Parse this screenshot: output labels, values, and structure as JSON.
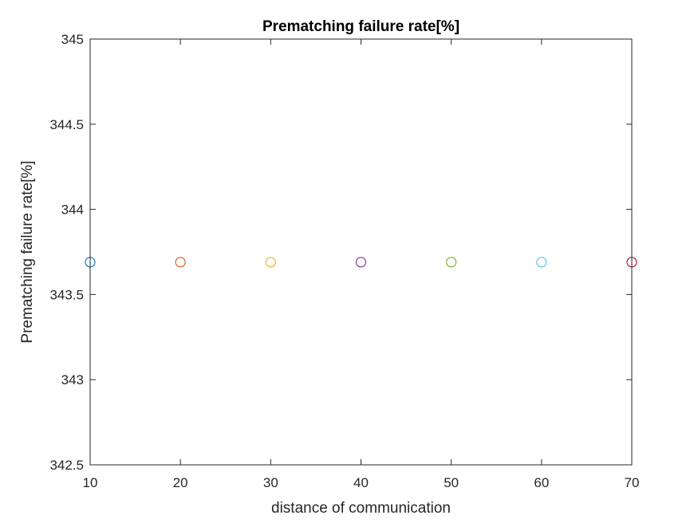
{
  "chart_data": {
    "type": "scatter",
    "title": "Prematching failure rate[%]",
    "xlabel": "distance of communication",
    "ylabel": "Prematching failure rate[%]",
    "xlim": [
      10,
      70
    ],
    "ylim": [
      342.5,
      345
    ],
    "xticks": [
      10,
      20,
      30,
      40,
      50,
      60,
      70
    ],
    "yticks": [
      342.5,
      343,
      343.5,
      344,
      344.5,
      345
    ],
    "xtick_labels": [
      "10",
      "20",
      "30",
      "40",
      "50",
      "60",
      "70"
    ],
    "ytick_labels": [
      "342.5",
      "343",
      "343.5",
      "344",
      "344.5",
      "345"
    ],
    "grid": false,
    "marker": "circle-open",
    "series": [
      {
        "x": [
          10
        ],
        "y": [
          343.69
        ],
        "color": "#0072BD"
      },
      {
        "x": [
          20
        ],
        "y": [
          343.69
        ],
        "color": "#D95319"
      },
      {
        "x": [
          30
        ],
        "y": [
          343.69
        ],
        "color": "#EDB120"
      },
      {
        "x": [
          40
        ],
        "y": [
          343.69
        ],
        "color": "#7E2F8E"
      },
      {
        "x": [
          50
        ],
        "y": [
          343.69
        ],
        "color": "#77AC30"
      },
      {
        "x": [
          60
        ],
        "y": [
          343.69
        ],
        "color": "#4DBEEE"
      },
      {
        "x": [
          70
        ],
        "y": [
          343.69
        ],
        "color": "#A2142F"
      }
    ]
  }
}
